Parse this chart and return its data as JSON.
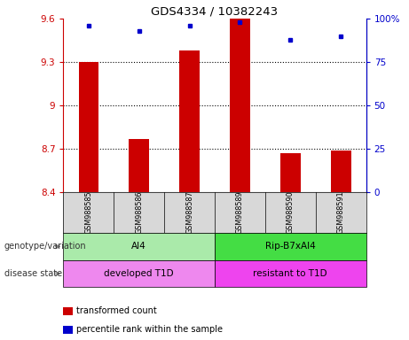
{
  "title": "GDS4334 / 10382243",
  "samples": [
    "GSM988585",
    "GSM988586",
    "GSM988587",
    "GSM988589",
    "GSM988590",
    "GSM988591"
  ],
  "bar_values": [
    9.3,
    8.77,
    9.38,
    9.6,
    8.67,
    8.69
  ],
  "dot_values": [
    96,
    93,
    96,
    98,
    88,
    90
  ],
  "bar_color": "#cc0000",
  "dot_color": "#0000cc",
  "ylim_left": [
    8.4,
    9.6
  ],
  "ylim_right": [
    0,
    100
  ],
  "yticks_left": [
    8.4,
    8.7,
    9.0,
    9.3,
    9.6
  ],
  "yticks_right": [
    0,
    25,
    50,
    75,
    100
  ],
  "ytick_labels_left": [
    "8.4",
    "8.7",
    "9",
    "9.3",
    "9.6"
  ],
  "ytick_labels_right": [
    "0",
    "25",
    "50",
    "75",
    "100%"
  ],
  "hline_values": [
    9.3,
    9.0,
    8.7
  ],
  "group1_label": "AI4",
  "group2_label": "Rip-B7xAI4",
  "genotype_label": "genotype/variation",
  "disease_label": "disease state",
  "disease1_label": "developed T1D",
  "disease2_label": "resistant to T1D",
  "group1_color": "#aaeaaa",
  "group2_color": "#44dd44",
  "disease1_color": "#ee88ee",
  "disease2_color": "#ee44ee",
  "legend_bar": "transformed count",
  "legend_dot": "percentile rank within the sample",
  "bar_width": 0.4,
  "tick_label_color_left": "#cc0000",
  "tick_label_color_right": "#0000cc",
  "background_color": "#ffffff",
  "sample_area_color": "#d8d8d8",
  "arrow_color": "#888888",
  "label_color": "#333333"
}
